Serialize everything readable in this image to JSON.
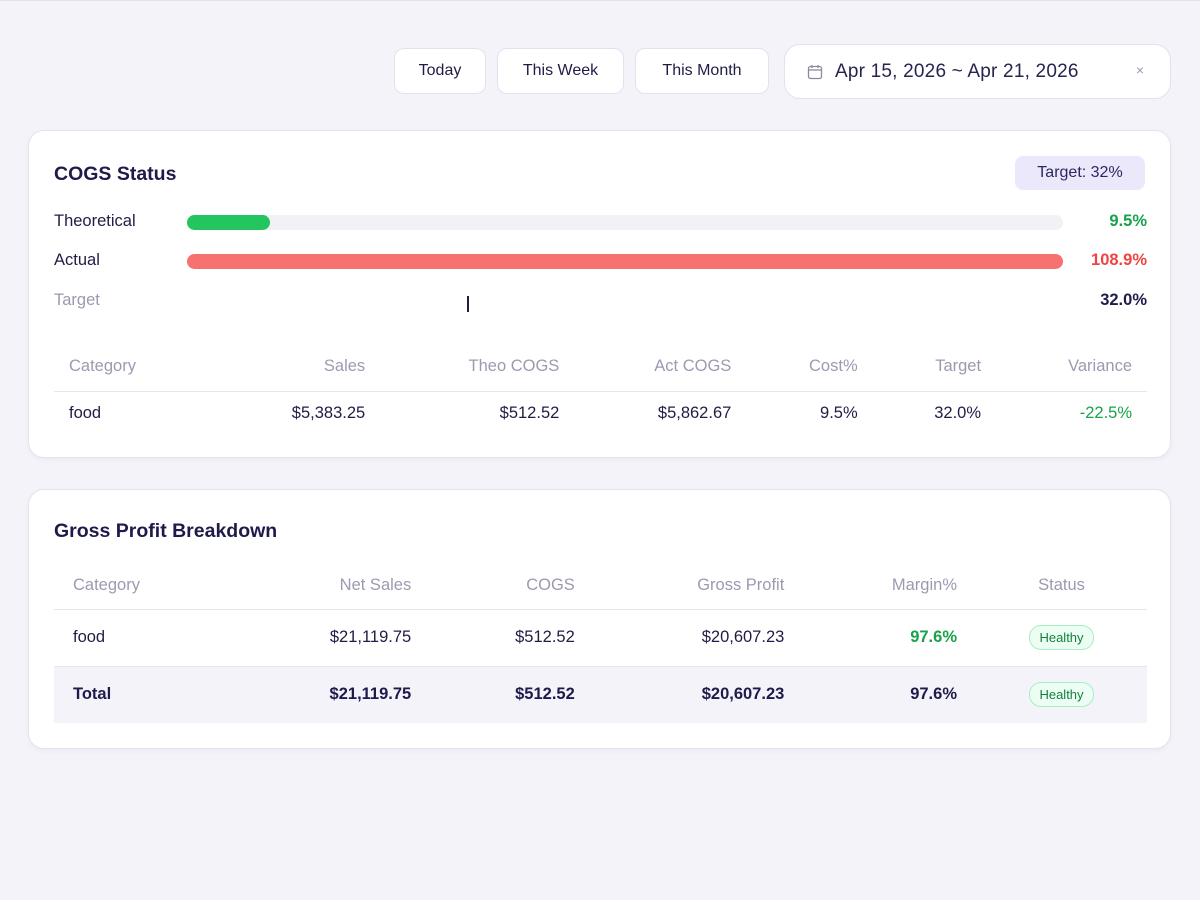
{
  "toolbar": {
    "today_label": "Today",
    "week_label": "This Week",
    "month_label": "This Month",
    "date_range": "Apr 15, 2026 ~ Apr 21, 2026",
    "clear_glyph": "×"
  },
  "cogs_status": {
    "title": "COGS Status",
    "target_badge": "Target: 32%",
    "bars": [
      {
        "label": "Theoretical",
        "value_text": "9.5%",
        "fill_fraction": 0.095,
        "color": "#22c55e"
      },
      {
        "label": "Actual",
        "value_text": "108.9%",
        "fill_fraction": 1.0,
        "color": "#f87171"
      },
      {
        "label": "Target",
        "value_text": "32.0%",
        "marker_fraction": 0.32
      }
    ],
    "table": {
      "headers": [
        "Category",
        "Sales",
        "Theo COGS",
        "Act COGS",
        "Cost%",
        "Target",
        "Variance"
      ],
      "rows": [
        {
          "category": "food",
          "sales": "$5,383.25",
          "theo_cogs": "$512.52",
          "act_cogs": "$5,862.67",
          "cost_pct": "9.5%",
          "target": "32.0%",
          "variance": "-22.5%"
        }
      ]
    }
  },
  "gross_profit": {
    "title": "Gross Profit Breakdown",
    "table": {
      "headers": [
        "Category",
        "Net Sales",
        "COGS",
        "Gross Profit",
        "Margin%",
        "Status"
      ],
      "rows": [
        {
          "category": "food",
          "net_sales": "$21,119.75",
          "cogs": "$512.52",
          "gross_profit": "$20,607.23",
          "margin": "97.6%",
          "status": "Healthy"
        }
      ],
      "total": {
        "category": "Total",
        "net_sales": "$21,119.75",
        "cogs": "$512.52",
        "gross_profit": "$20,607.23",
        "margin": "97.6%",
        "status": "Healthy"
      }
    }
  },
  "colors": {
    "accent_green": "#16a34a",
    "accent_red": "#ef4444",
    "badge_bg": "#ebe8fb",
    "page_bg": "#f3f3f9"
  },
  "icons": {
    "date_picker": "calendar-icon",
    "clear": "close-icon"
  }
}
